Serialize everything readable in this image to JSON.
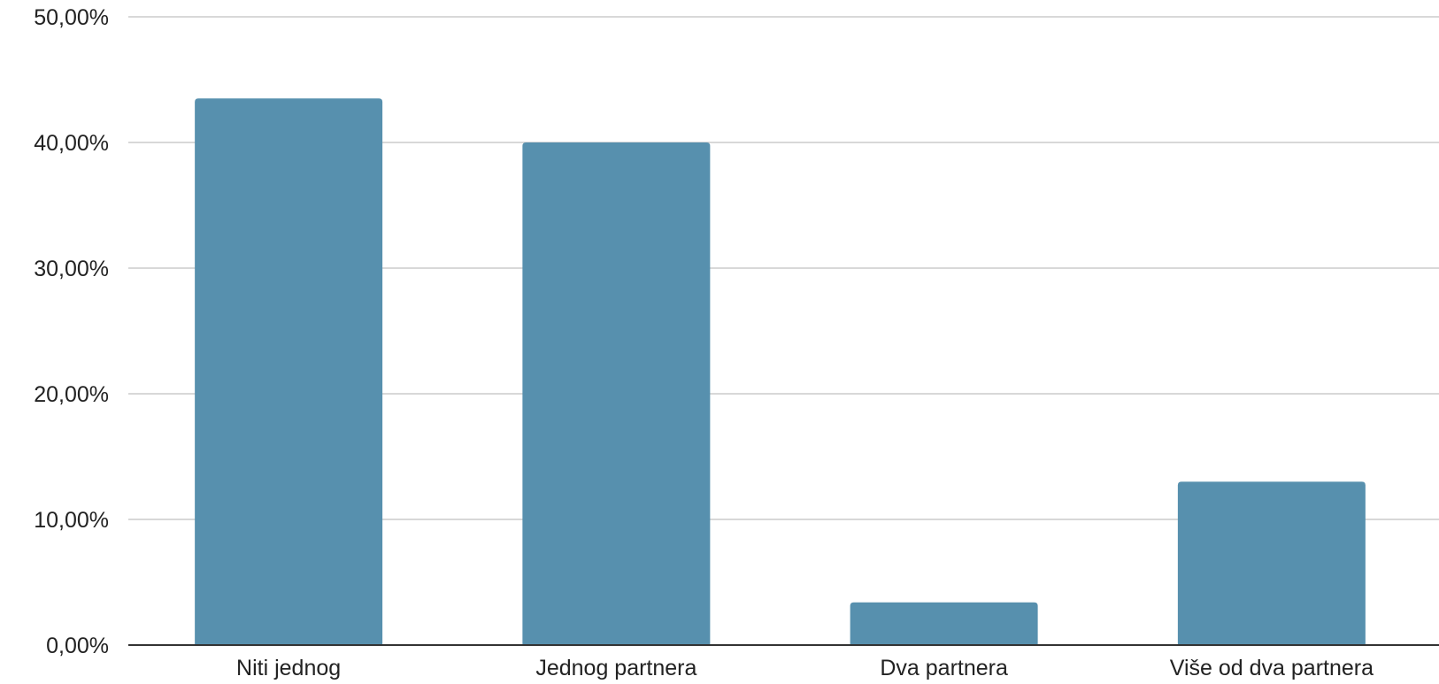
{
  "chart_data": {
    "type": "bar",
    "title": "",
    "xlabel": "",
    "ylabel": "",
    "categories": [
      "Niti jednog",
      "Jednog partnera",
      "Dva partnera",
      "Više od dva partnera"
    ],
    "values": [
      43.5,
      40.0,
      3.4,
      13.0
    ],
    "ylim": [
      0,
      50
    ],
    "yticks": [
      0,
      10,
      20,
      30,
      40,
      50
    ],
    "ytick_labels": [
      "0,00%",
      "10,00%",
      "20,00%",
      "30,00%",
      "40,00%",
      "50,00%"
    ],
    "grid": true,
    "legend": "none",
    "bar_color": "#5790ae",
    "grid_color": "#cccccc",
    "axis_color": "#333333"
  }
}
